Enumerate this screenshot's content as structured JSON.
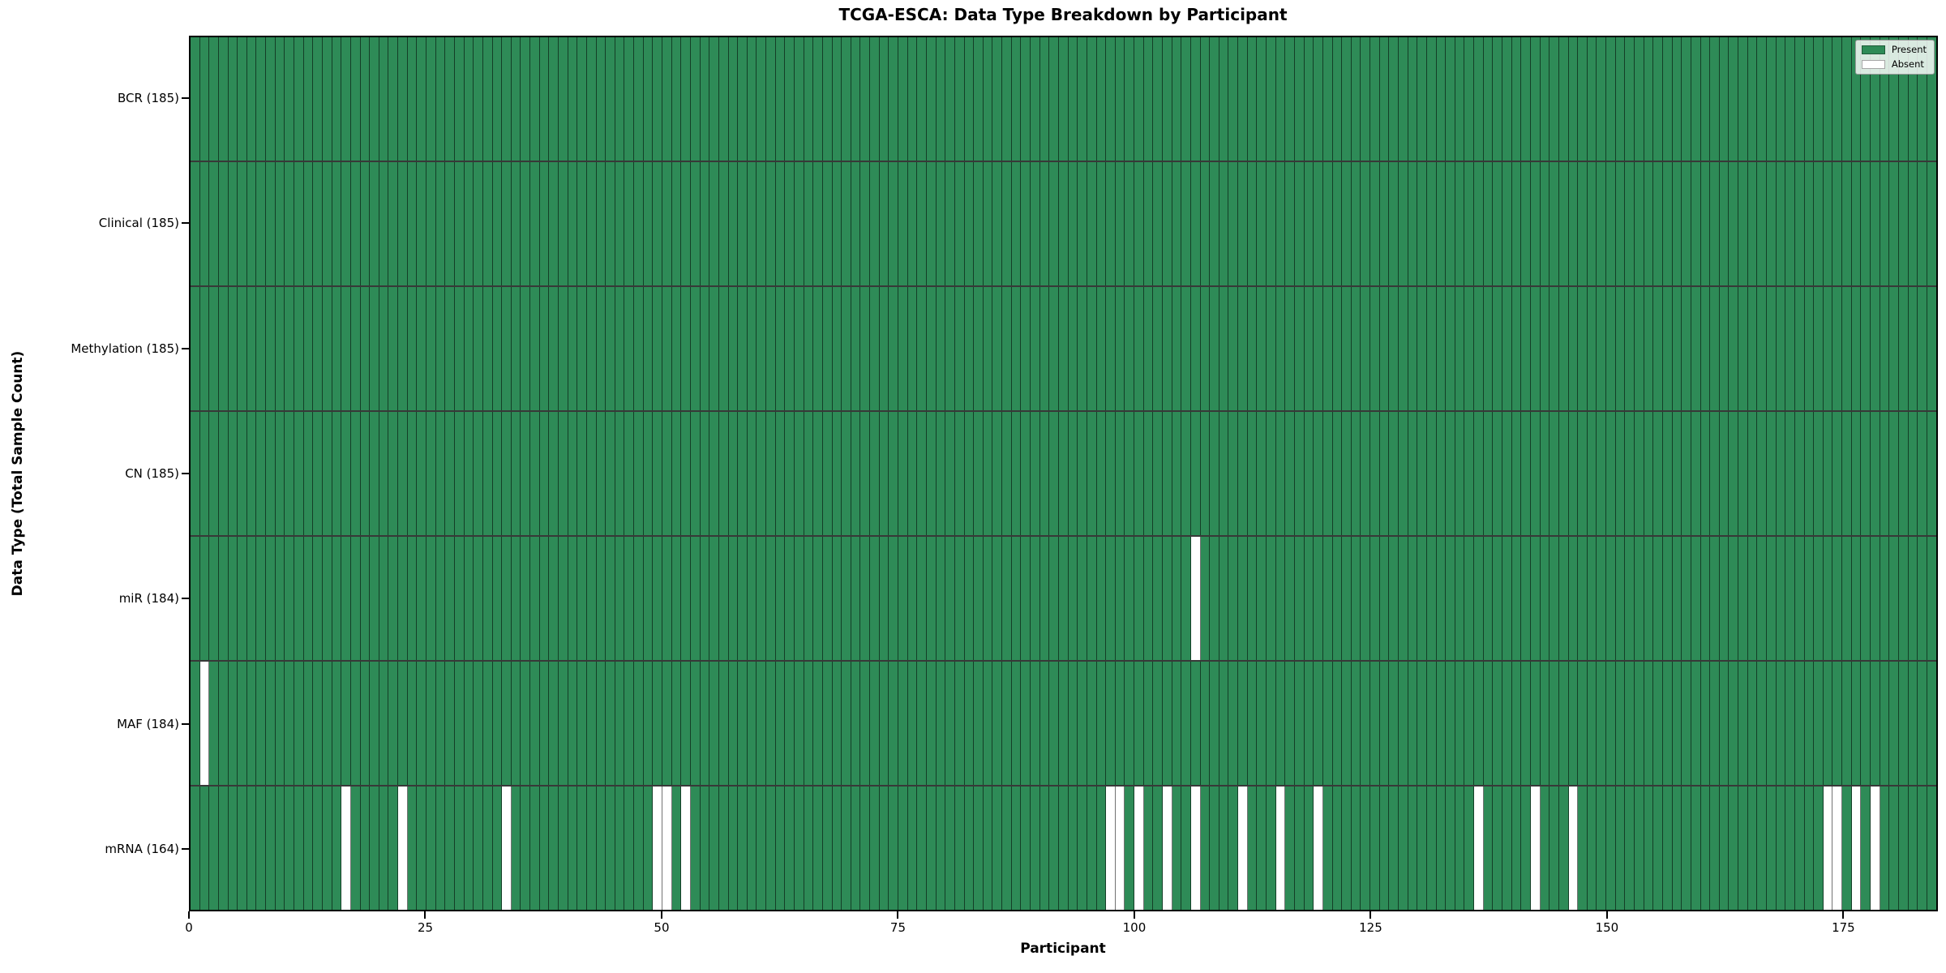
{
  "title": "TCGA-ESCA: Data Type Breakdown by Participant",
  "x_axis": {
    "label": "Participant",
    "ticks": [
      0,
      25,
      50,
      75,
      100,
      125,
      150,
      175
    ]
  },
  "y_axis": {
    "label": "Data Type (Total Sample Count)"
  },
  "legend": {
    "items": [
      {
        "label": "Present",
        "color": "#2e8b57"
      },
      {
        "label": "Absent",
        "color": "#ffffff"
      }
    ]
  },
  "colors": {
    "present": "#2e8b57",
    "absent": "#ffffff",
    "cell_border": "rgba(0,0,0,0.55)",
    "spine": "#000000",
    "background": "#ffffff"
  },
  "chart_data": {
    "type": "heatmap",
    "n_participants": 185,
    "x_range": [
      0,
      185
    ],
    "grid": "cell-borders",
    "legend_position": "upper-right",
    "value_encoding": {
      "1": "Present",
      "0": "Absent"
    },
    "rows": [
      {
        "label": "BCR (185)",
        "name": "BCR",
        "total": 185,
        "absent_participants": []
      },
      {
        "label": "Clinical (185)",
        "name": "Clinical",
        "total": 185,
        "absent_participants": []
      },
      {
        "label": "Methylation (185)",
        "name": "Methylation",
        "total": 185,
        "absent_participants": []
      },
      {
        "label": "CN (185)",
        "name": "CN",
        "total": 185,
        "absent_participants": []
      },
      {
        "label": "miR (184)",
        "name": "miR",
        "total": 184,
        "absent_participants": [
          106
        ]
      },
      {
        "label": "MAF (184)",
        "name": "MAF",
        "total": 184,
        "absent_participants": [
          1
        ]
      },
      {
        "label": "mRNA (164)",
        "name": "mRNA",
        "total": 164,
        "absent_participants": [
          16,
          22,
          33,
          49,
          50,
          52,
          97,
          98,
          100,
          103,
          106,
          111,
          115,
          119,
          136,
          142,
          146,
          173,
          174,
          176,
          178
        ]
      }
    ]
  }
}
